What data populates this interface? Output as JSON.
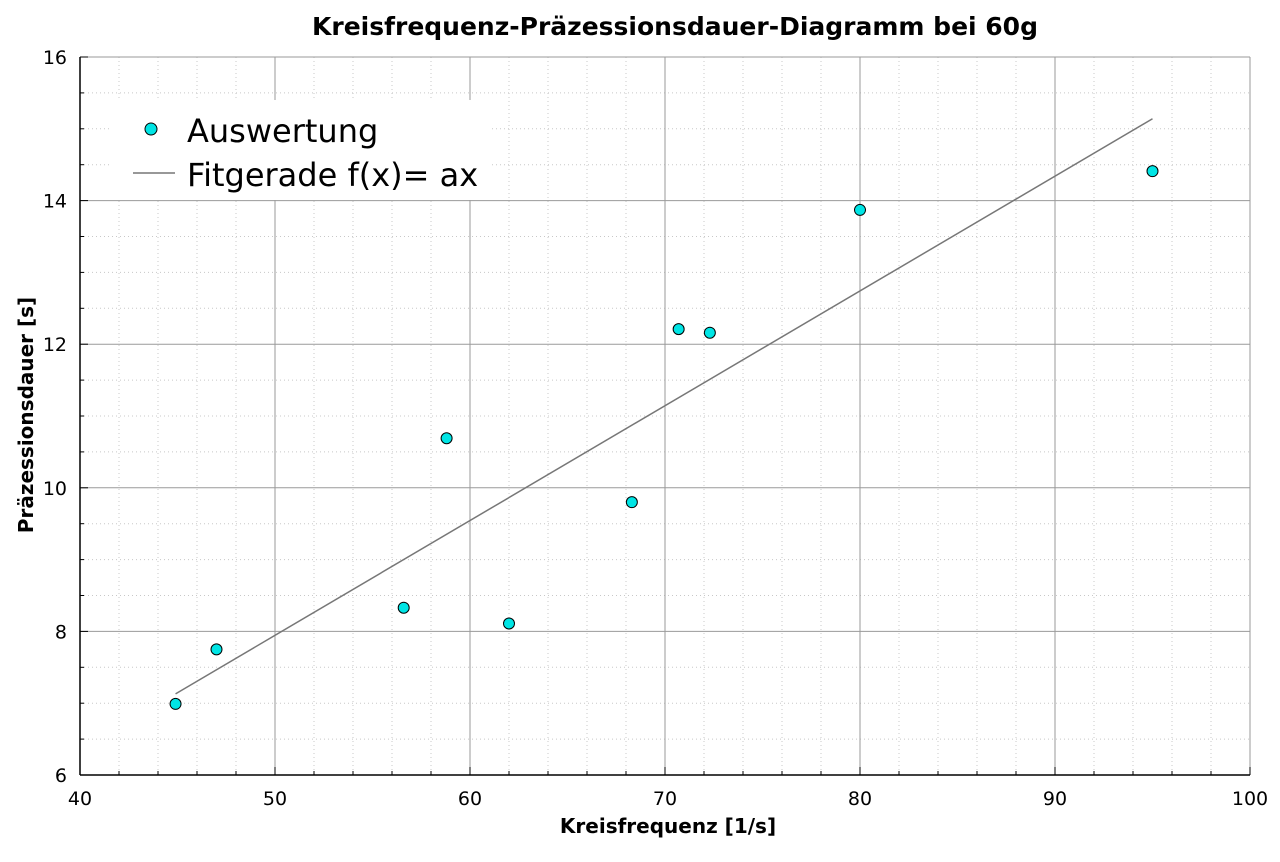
{
  "chart_data": {
    "type": "scatter",
    "title": "Kreisfrequenz-Präzessionsdauer-Diagramm bei 60g",
    "xlabel": "Kreisfrequenz [1/s]",
    "ylabel": "Präzessionsdauer [s]",
    "xlim": [
      40,
      100
    ],
    "ylim": [
      6,
      16
    ],
    "x_ticks": [
      40,
      50,
      60,
      70,
      80,
      90,
      100
    ],
    "y_ticks": [
      6,
      8,
      10,
      12,
      14,
      16
    ],
    "grid": true,
    "minor_grid": true,
    "legend_position": "top-left",
    "series": [
      {
        "name": "Auswertung",
        "kind": "scatter",
        "color": "#00e5e5",
        "edge_color": "#000000",
        "x": [
          44.9,
          47.0,
          56.6,
          58.8,
          62.0,
          68.3,
          70.7,
          72.3,
          80.0,
          95.0
        ],
        "y": [
          6.99,
          7.75,
          8.33,
          10.69,
          8.11,
          9.8,
          12.21,
          12.16,
          13.87,
          14.41
        ]
      },
      {
        "name": "Fitgerade f(x)= ax",
        "kind": "line",
        "color": "#777777",
        "x": [
          44.9,
          95.0
        ],
        "y": [
          7.13,
          15.14
        ]
      }
    ]
  }
}
